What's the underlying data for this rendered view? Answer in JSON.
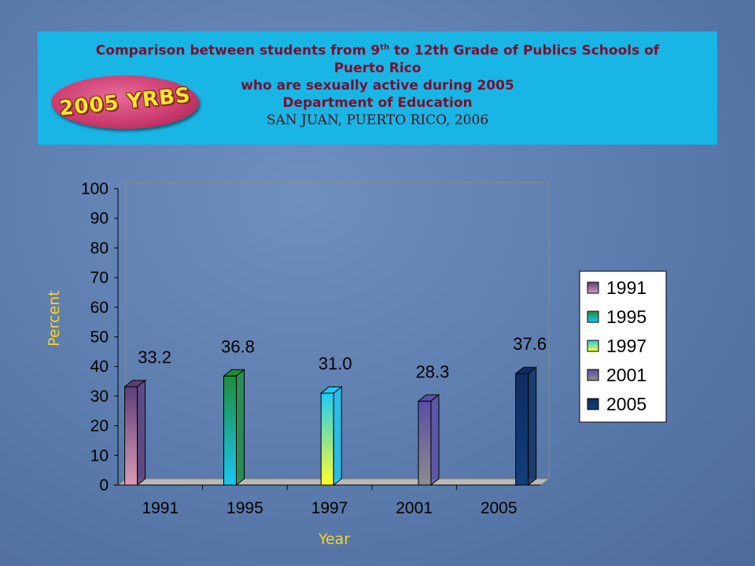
{
  "header": {
    "line1_pre": "Comparison between students from 9",
    "line1_sup": "th",
    "line1_post": " to 12th Grade of Publics Schools of",
    "line2": "Puerto Rico",
    "line3": "who are sexually active during 2005",
    "line4": "Department of Education",
    "line5": "SAN JUAN, PUERTO RICO, 2006",
    "logo_text": "2005 YRBS",
    "background_color": "#19b5e4"
  },
  "chart_data": {
    "type": "bar",
    "categories": [
      "1991",
      "1995",
      "1997",
      "2001",
      "2005"
    ],
    "values": [
      33.2,
      36.8,
      31.0,
      28.3,
      37.6
    ],
    "value_labels": [
      "33.2",
      "36.8",
      "31.0",
      "28.3",
      "37.6"
    ],
    "xlabel": "Year",
    "ylabel": "Percent",
    "ylim": [
      0,
      100
    ],
    "yticks": [
      "0",
      "10",
      "20",
      "30",
      "40",
      "50",
      "60",
      "70",
      "80",
      "90",
      "100"
    ],
    "legend": {
      "placement": "right",
      "entries": [
        "1991",
        "1995",
        "1997",
        "2001",
        "2005"
      ]
    },
    "colors": [
      "#d98aa8",
      "#1f9e46",
      "#ffff44",
      "#7e6fa6",
      "#103a72"
    ],
    "grid": false,
    "three_d": true
  }
}
